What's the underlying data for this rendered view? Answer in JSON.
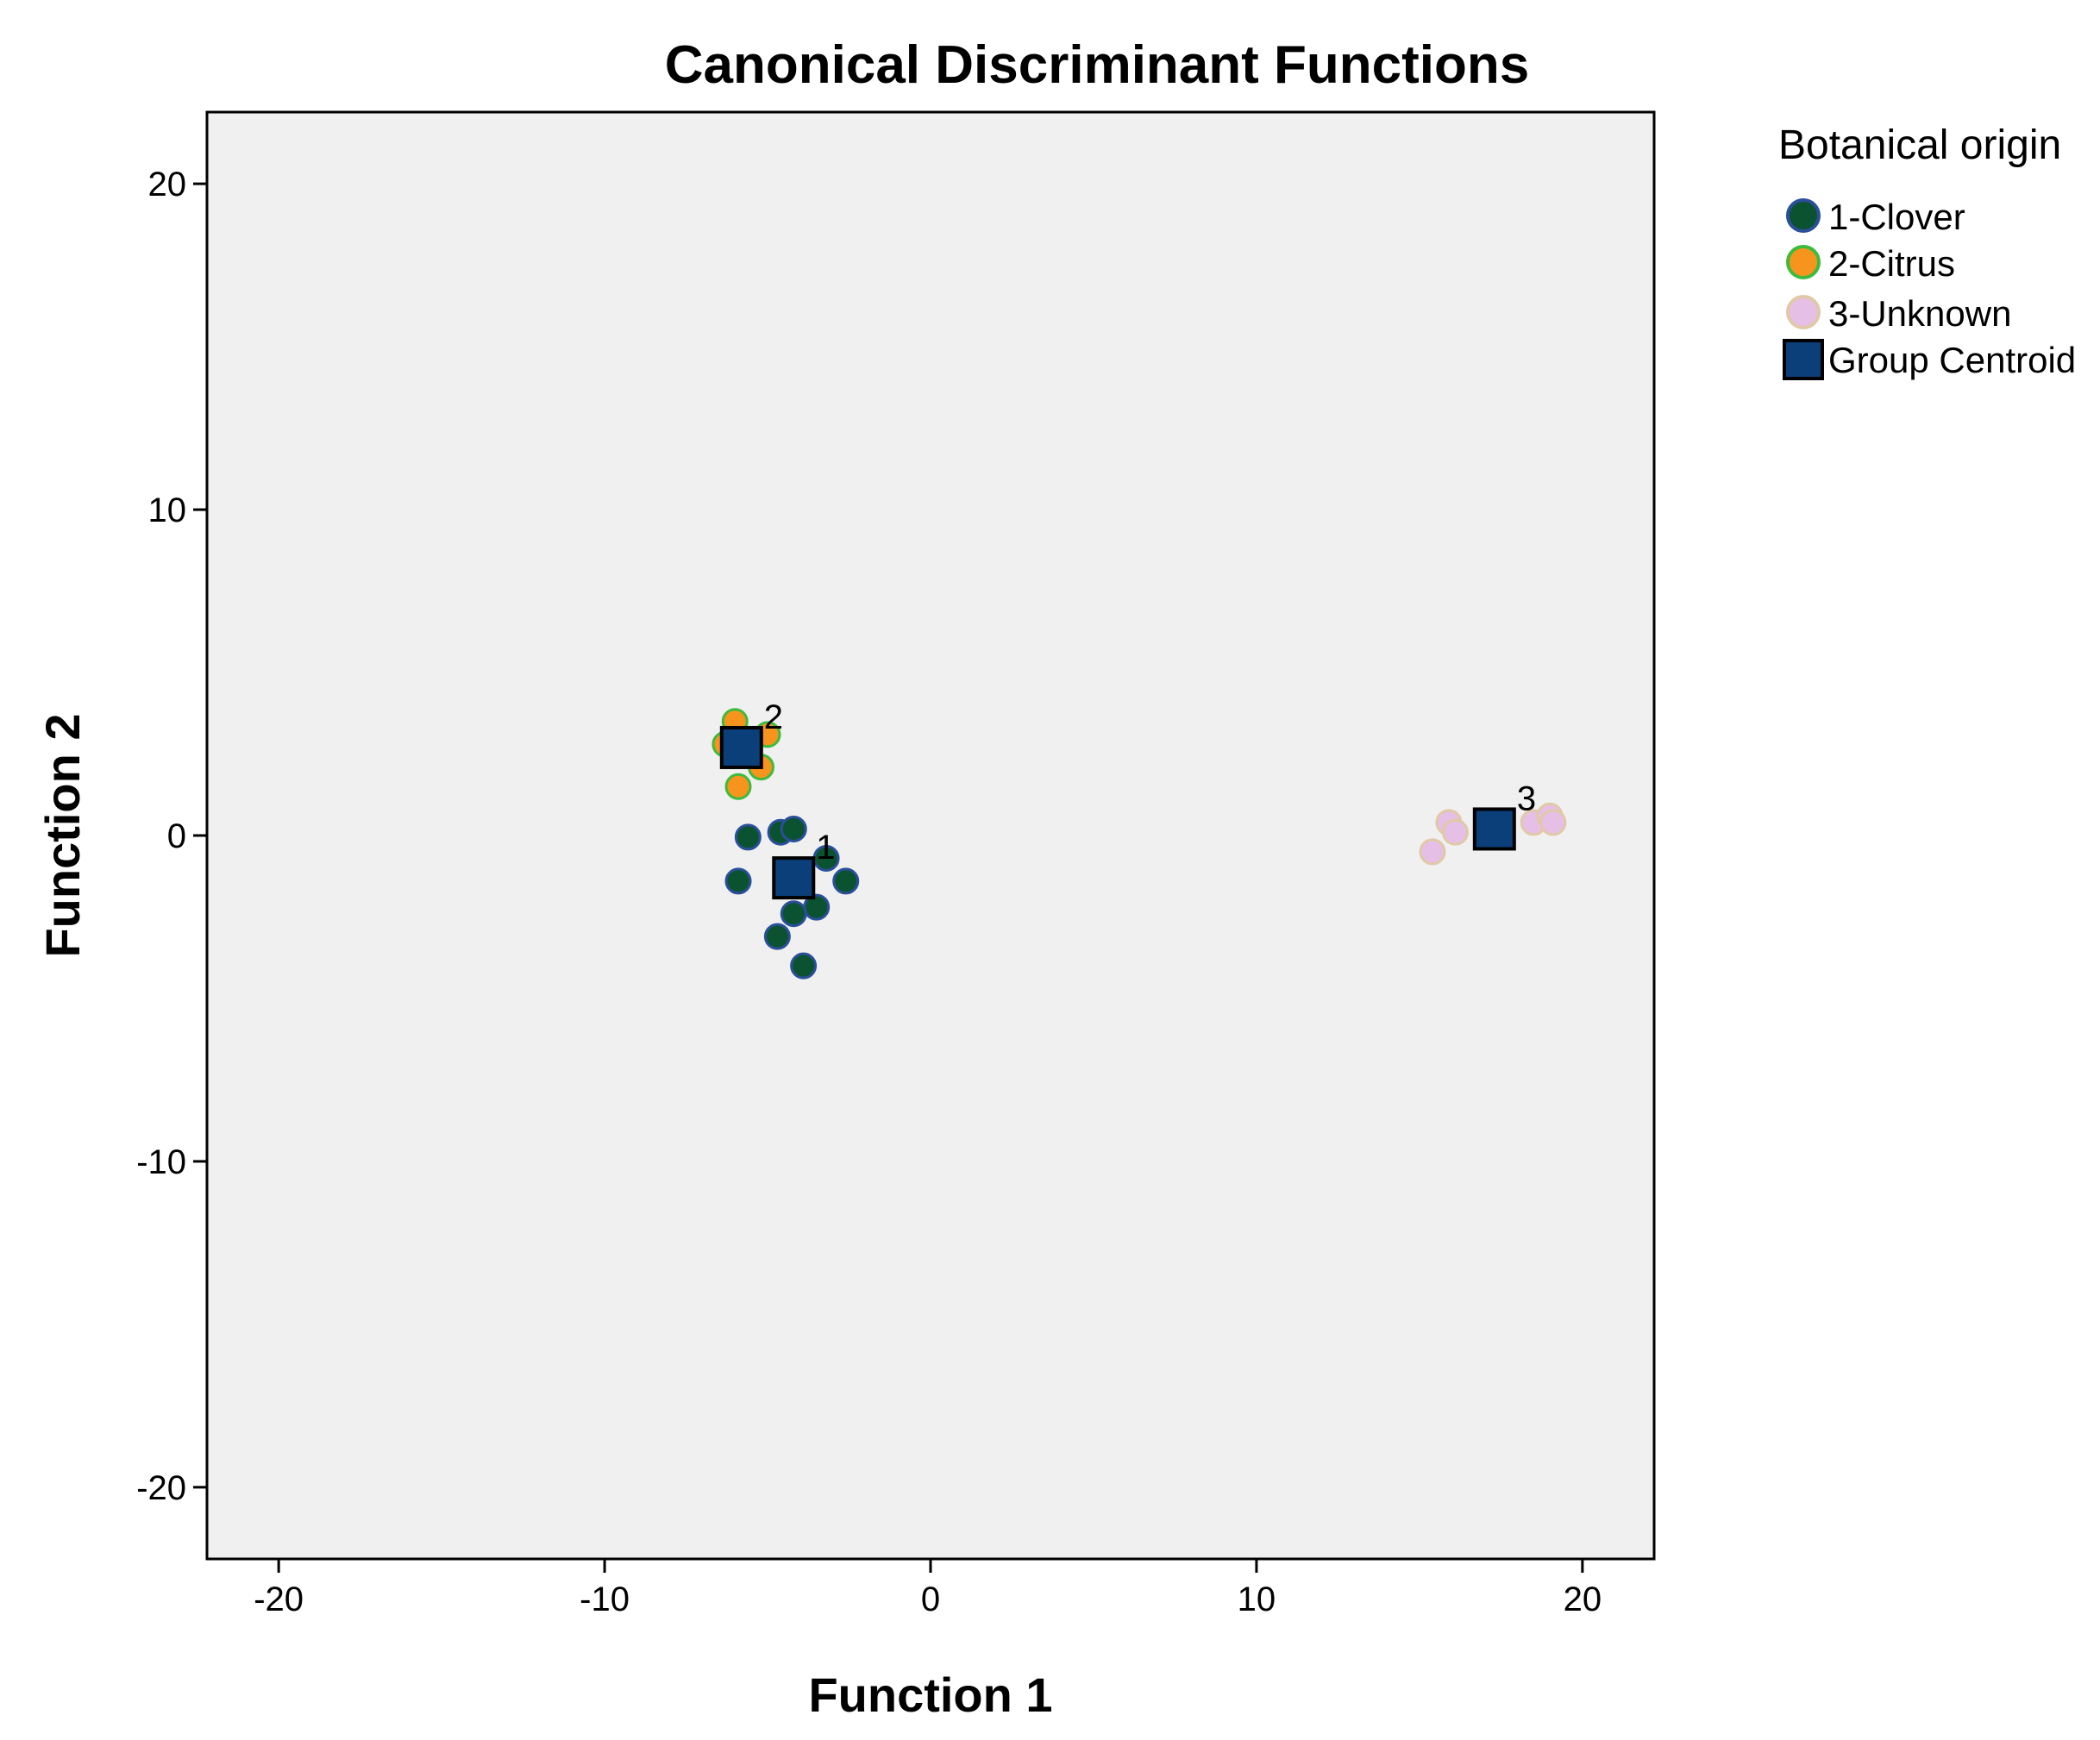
{
  "chart_data": {
    "type": "scatter",
    "title": "Canonical Discriminant Functions",
    "xlabel": "Function 1",
    "ylabel": "Function 2",
    "xlim": [
      -22.2,
      22.2
    ],
    "ylim": [
      -22.2,
      22.2
    ],
    "xticks": [
      -20,
      -10,
      0,
      10,
      20
    ],
    "yticks": [
      -20,
      -10,
      0,
      10,
      20
    ],
    "grid": false,
    "plot_background": "#f0f0f0",
    "legend": {
      "title": "Botanical origin",
      "placement": "right-top",
      "entries": [
        "1-Clover",
        "2-Citrus",
        "3-Unknown",
        "Group Centroid"
      ]
    },
    "series": [
      {
        "name": "1-Clover",
        "marker": "circle",
        "fill": "#0b5230",
        "stroke": "#2a4f9a",
        "points": [
          [
            -4.6,
            0.1
          ],
          [
            -4.2,
            0.2
          ],
          [
            -5.6,
            -0.05
          ],
          [
            -3.2,
            -0.7
          ],
          [
            -2.6,
            -1.4
          ],
          [
            -5.9,
            -1.4
          ],
          [
            -4.4,
            -1.1
          ],
          [
            -3.5,
            -2.2
          ],
          [
            -4.2,
            -2.4
          ],
          [
            -4.7,
            -3.1
          ],
          [
            -3.9,
            -4.0
          ]
        ]
      },
      {
        "name": "2-Citrus",
        "marker": "circle",
        "fill": "#f7941d",
        "stroke": "#3dbb3d",
        "points": [
          [
            -6.0,
            3.5
          ],
          [
            -5.0,
            3.1
          ],
          [
            -6.3,
            2.8
          ],
          [
            -5.2,
            2.1
          ],
          [
            -5.9,
            1.5
          ]
        ]
      },
      {
        "name": "3-Unknown",
        "marker": "circle",
        "fill": "#e6bfe6",
        "stroke": "#e0c9a6",
        "points": [
          [
            15.9,
            0.4
          ],
          [
            16.1,
            0.1
          ],
          [
            15.4,
            -0.5
          ],
          [
            18.5,
            0.4
          ],
          [
            19.0,
            0.6
          ],
          [
            19.1,
            0.4
          ]
        ]
      }
    ],
    "centroids": {
      "name": "Group Centroid",
      "marker": "square",
      "fill": "#0b3f7a",
      "stroke": "#000000",
      "points": [
        {
          "label": "1",
          "x": -4.2,
          "y": -1.3
        },
        {
          "label": "2",
          "x": -5.8,
          "y": 2.7
        },
        {
          "label": "3",
          "x": 17.3,
          "y": 0.2
        }
      ]
    }
  }
}
